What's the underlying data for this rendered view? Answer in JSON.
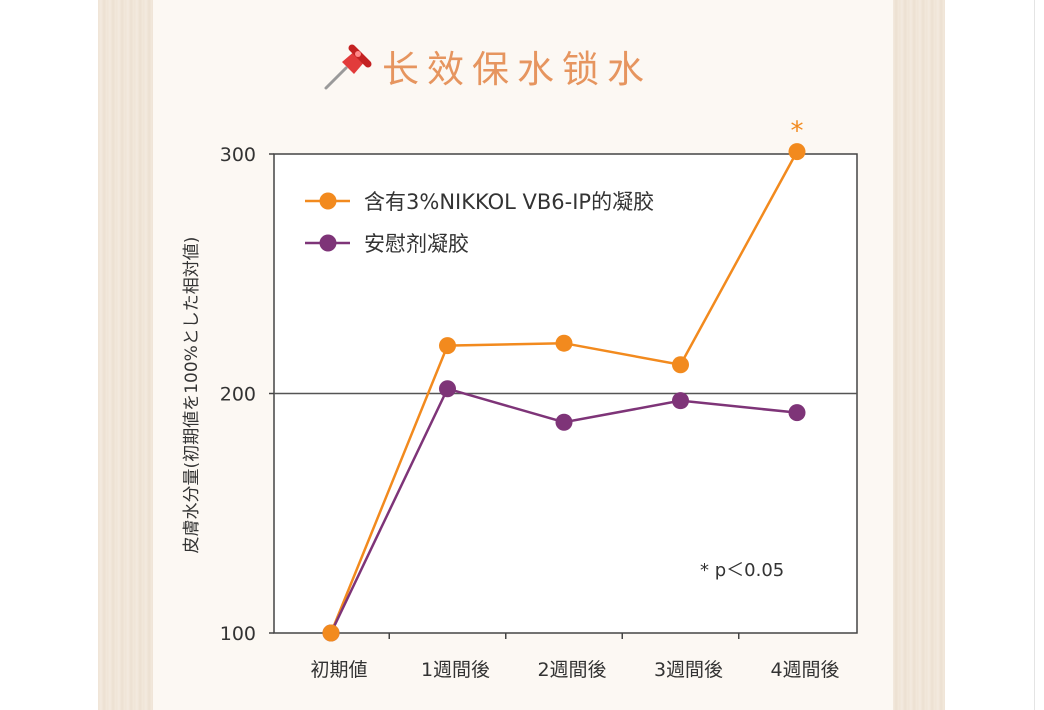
{
  "heading": {
    "text": "长效保水锁水",
    "icon": "pushpin-icon",
    "icon_color": "#e43a3a"
  },
  "chart_data": {
    "type": "line",
    "categories": [
      "初期値",
      "1週間後",
      "2週間後",
      "3週間後",
      "4週間後"
    ],
    "series": [
      {
        "name": "含有3%NIKKOL VB6-IP的凝胶",
        "color": "#f28a1e",
        "values": [
          100,
          220,
          221,
          212,
          301
        ]
      },
      {
        "name": "安慰剂凝胶",
        "color": "#7e3478",
        "values": [
          100,
          202,
          188,
          197,
          192
        ]
      }
    ],
    "ylabel": "皮膚水分量(初期値を100%とした相対値)",
    "xlabel": "",
    "ylim": [
      100,
      300
    ],
    "yticks": [
      100,
      200,
      300
    ],
    "reference_line": 200,
    "significance_marker": {
      "text": "*",
      "category": "4週間後",
      "series": 0
    },
    "annotation": "* p＜0.05",
    "legend_position": "top-left"
  }
}
